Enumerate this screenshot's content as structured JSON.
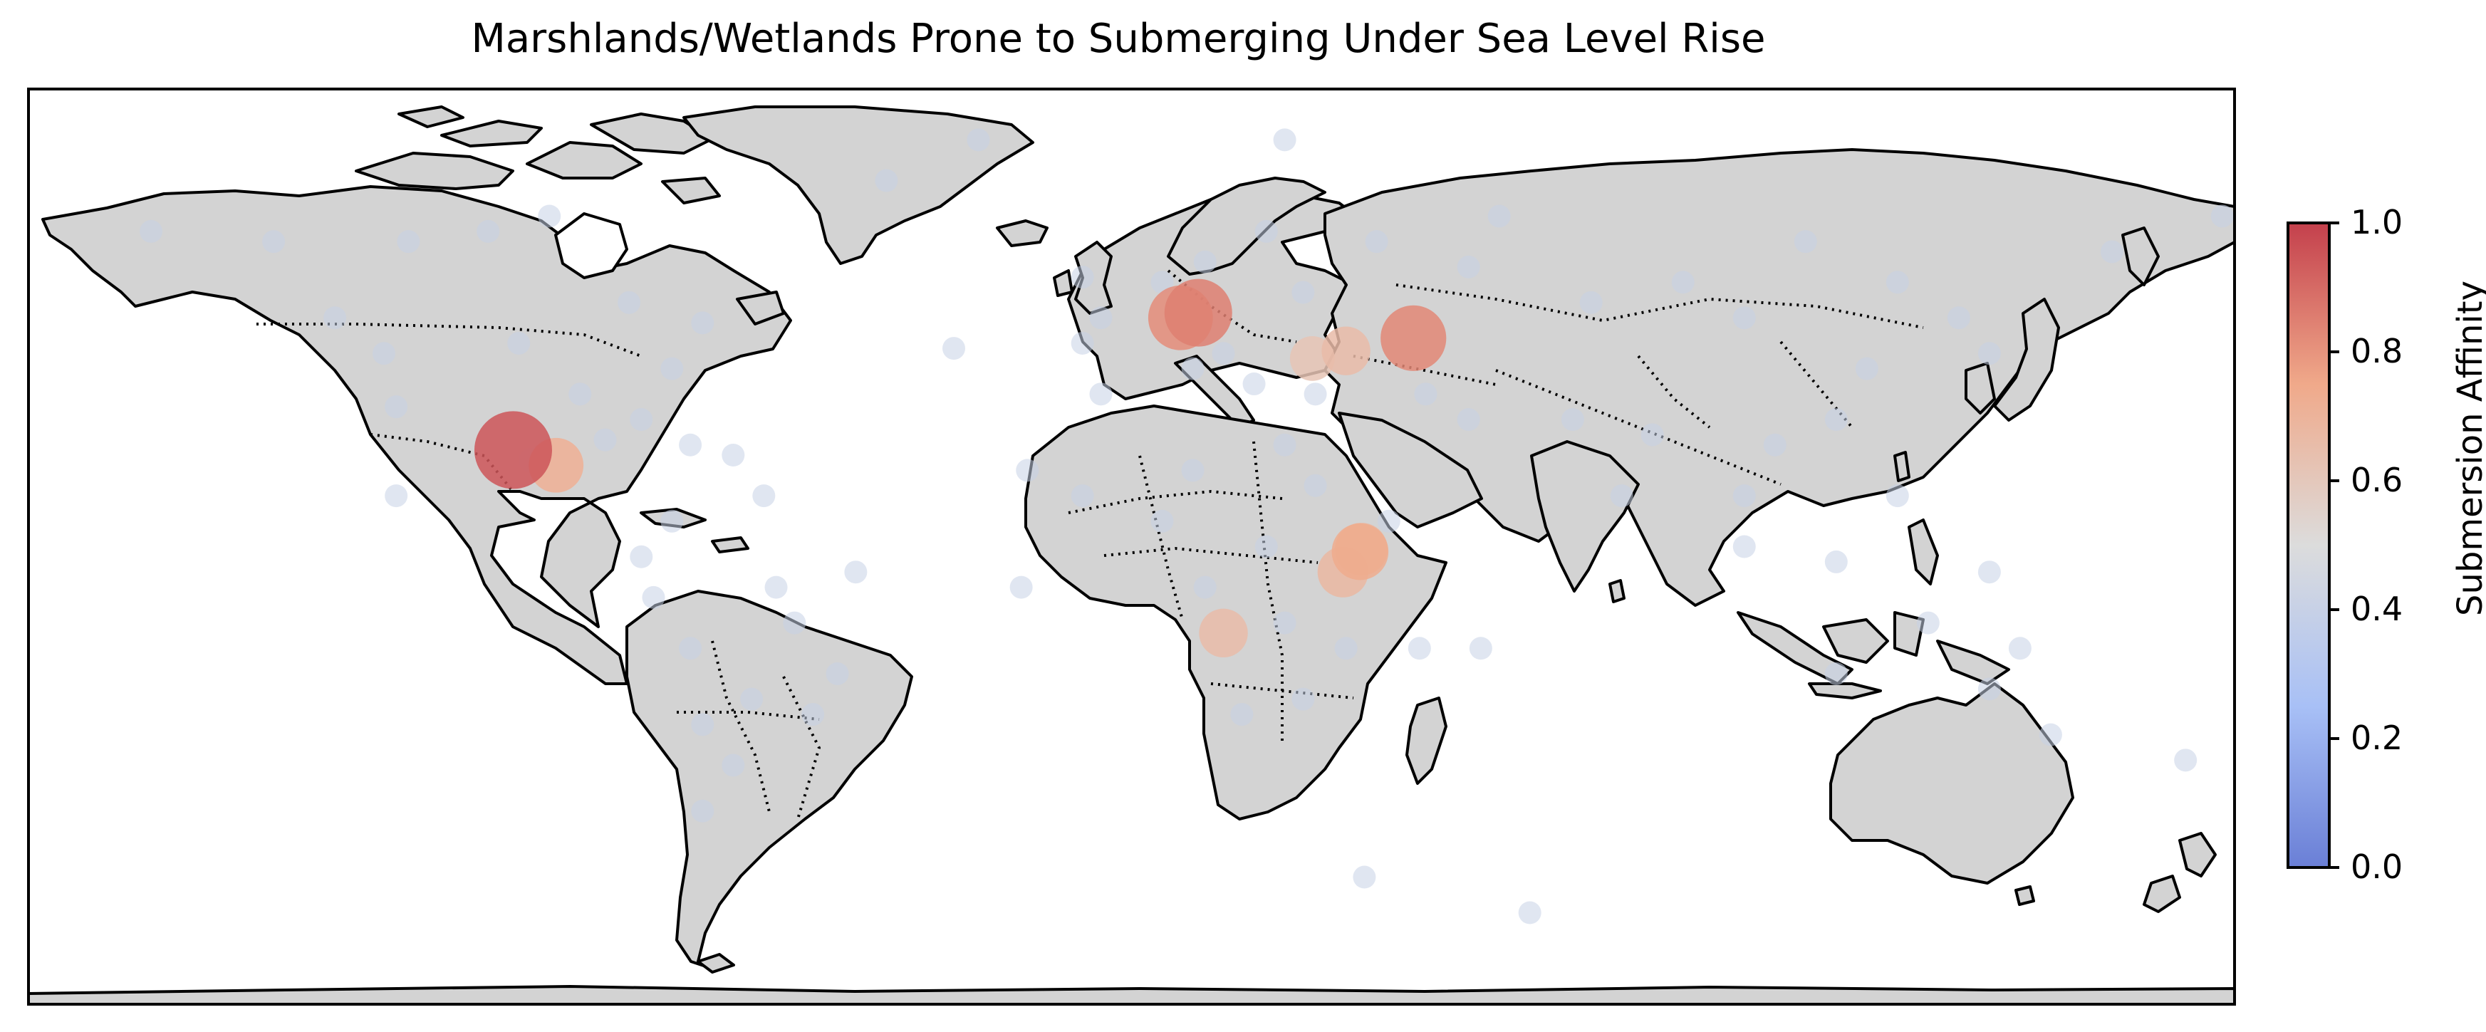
{
  "title": "Marshlands/Wetlands Prone to Submerging Under Sea Level Rise",
  "colorbar": {
    "label": "Submersion Affinity",
    "colormap": "coolwarm",
    "range": [
      0.0,
      1.0
    ],
    "ticks": [
      "0.0",
      "0.2",
      "0.4",
      "0.6",
      "0.8",
      "1.0"
    ],
    "colors": {
      "low": "#7083d8",
      "mid": "#dcdcdc",
      "high": "#c4404c"
    }
  },
  "map": {
    "projection": "PlateCarree",
    "extent_lon": [
      -180,
      180
    ],
    "extent_lat": [
      -90,
      90
    ],
    "land_color": "#d3d3d3",
    "ocean_color": "#ffffff",
    "coastline": "solid",
    "borders": "dotted"
  },
  "chart_data": {
    "type": "scatter",
    "title": "Marshlands/Wetlands Prone to Submerging Under Sea Level Rise",
    "xlabel": "",
    "ylabel": "",
    "xlim": [
      -180,
      180
    ],
    "ylim": [
      -90,
      90
    ],
    "colorbar_label": "Submersion Affinity",
    "points": [
      {
        "lon": -100.9,
        "lat": 19.0,
        "affinity": 0.95
      },
      {
        "lon": -93.9,
        "lat": 16.0,
        "affinity": 0.72
      },
      {
        "lon": 10.9,
        "lat": 46.0,
        "affinity": 0.85
      },
      {
        "lon": 8.0,
        "lat": 45.0,
        "affinity": 0.82
      },
      {
        "lon": 46.0,
        "lat": 41.0,
        "affinity": 0.83
      },
      {
        "lon": 35.0,
        "lat": 38.5,
        "affinity": 0.66
      },
      {
        "lon": 29.5,
        "lat": 37.0,
        "affinity": 0.62
      },
      {
        "lon": 37.3,
        "lat": -1.0,
        "affinity": 0.74
      },
      {
        "lon": 37.5,
        "lat": -0.5,
        "affinity": 0.7
      },
      {
        "lon": 34.5,
        "lat": -5.0,
        "affinity": 0.68
      },
      {
        "lon": 15.0,
        "lat": -17.0,
        "affinity": 0.66
      },
      {
        "lon": -98.0,
        "lat": 17.0,
        "affinity": 0.42
      },
      {
        "lon": -85.9,
        "lat": 21.0,
        "affinity": 0.4
      },
      {
        "lon": -80.0,
        "lat": 25.0,
        "affinity": 0.4
      },
      {
        "lon": -120.0,
        "lat": 27.5,
        "affinity": 0.4
      },
      {
        "lon": -122.0,
        "lat": 38.0,
        "affinity": 0.4
      },
      {
        "lon": -118.0,
        "lat": 60.0,
        "affinity": 0.4
      },
      {
        "lon": -105.0,
        "lat": 62.0,
        "affinity": 0.4
      },
      {
        "lon": -95.0,
        "lat": 65.0,
        "affinity": 0.4
      },
      {
        "lon": -82.0,
        "lat": 48.0,
        "affinity": 0.4
      },
      {
        "lon": -70.0,
        "lat": 44.0,
        "affinity": 0.4
      },
      {
        "lon": -75.0,
        "lat": 35.0,
        "affinity": 0.4
      },
      {
        "lon": -90.0,
        "lat": 30.0,
        "affinity": 0.4
      },
      {
        "lon": -120.0,
        "lat": 10.0,
        "affinity": 0.4
      },
      {
        "lon": -130.0,
        "lat": 45.0,
        "affinity": 0.4
      },
      {
        "lon": -140.0,
        "lat": 60.0,
        "affinity": 0.4
      },
      {
        "lon": -160.0,
        "lat": 62.0,
        "affinity": 0.4
      },
      {
        "lon": -100.0,
        "lat": 40.0,
        "affinity": 0.4
      },
      {
        "lon": -72.0,
        "lat": 20.0,
        "affinity": 0.4
      },
      {
        "lon": -65.0,
        "lat": 18.0,
        "affinity": 0.4
      },
      {
        "lon": -60.0,
        "lat": 10.0,
        "affinity": 0.4
      },
      {
        "lon": -75.0,
        "lat": 5.0,
        "affinity": 0.4
      },
      {
        "lon": -80.0,
        "lat": -2.0,
        "affinity": 0.4
      },
      {
        "lon": -78.0,
        "lat": -10.0,
        "affinity": 0.4
      },
      {
        "lon": -72.0,
        "lat": -20.0,
        "affinity": 0.4
      },
      {
        "lon": -58.0,
        "lat": -8.0,
        "affinity": 0.4
      },
      {
        "lon": -45.0,
        "lat": -5.0,
        "affinity": 0.4
      },
      {
        "lon": -55.0,
        "lat": -15.0,
        "affinity": 0.4
      },
      {
        "lon": -48.0,
        "lat": -25.0,
        "affinity": 0.4
      },
      {
        "lon": -62.0,
        "lat": -30.0,
        "affinity": 0.4
      },
      {
        "lon": -70.0,
        "lat": -35.0,
        "affinity": 0.4
      },
      {
        "lon": -65.0,
        "lat": -43.0,
        "affinity": 0.4
      },
      {
        "lon": -70.0,
        "lat": -52.0,
        "affinity": 0.4
      },
      {
        "lon": -52.0,
        "lat": -33.0,
        "affinity": 0.4
      },
      {
        "lon": -40.0,
        "lat": 72.0,
        "affinity": 0.4
      },
      {
        "lon": -25.0,
        "lat": 80.0,
        "affinity": 0.4
      },
      {
        "lon": 25.0,
        "lat": 80.0,
        "affinity": 0.4
      },
      {
        "lon": -8.0,
        "lat": 53.0,
        "affinity": 0.4
      },
      {
        "lon": -5.0,
        "lat": 45.0,
        "affinity": 0.4
      },
      {
        "lon": -8.0,
        "lat": 40.0,
        "affinity": 0.4
      },
      {
        "lon": 5.0,
        "lat": 52.0,
        "affinity": 0.4
      },
      {
        "lon": 12.0,
        "lat": 56.0,
        "affinity": 0.4
      },
      {
        "lon": 22.0,
        "lat": 62.0,
        "affinity": 0.4
      },
      {
        "lon": 28.0,
        "lat": 50.0,
        "affinity": 0.4
      },
      {
        "lon": 15.0,
        "lat": 38.0,
        "affinity": 0.4
      },
      {
        "lon": 20.0,
        "lat": 32.0,
        "affinity": 0.4
      },
      {
        "lon": 40.0,
        "lat": 60.0,
        "affinity": 0.4
      },
      {
        "lon": 55.0,
        "lat": 55.0,
        "affinity": 0.4
      },
      {
        "lon": 60.0,
        "lat": 65.0,
        "affinity": 0.4
      },
      {
        "lon": 75.0,
        "lat": 48.0,
        "affinity": 0.4
      },
      {
        "lon": 90.0,
        "lat": 52.0,
        "affinity": 0.4
      },
      {
        "lon": 100.0,
        "lat": 45.0,
        "affinity": 0.4
      },
      {
        "lon": 110.0,
        "lat": 60.0,
        "affinity": 0.4
      },
      {
        "lon": 125.0,
        "lat": 52.0,
        "affinity": 0.4
      },
      {
        "lon": 135.0,
        "lat": 45.0,
        "affinity": 0.4
      },
      {
        "lon": 140.0,
        "lat": 38.0,
        "affinity": 0.4
      },
      {
        "lon": 120.0,
        "lat": 35.0,
        "affinity": 0.4
      },
      {
        "lon": 115.0,
        "lat": 25.0,
        "affinity": 0.4
      },
      {
        "lon": 105.0,
        "lat": 20.0,
        "affinity": 0.4
      },
      {
        "lon": 100.0,
        "lat": 10.0,
        "affinity": 0.4
      },
      {
        "lon": 80.0,
        "lat": 10.0,
        "affinity": 0.4
      },
      {
        "lon": 85.0,
        "lat": 22.0,
        "affinity": 0.4
      },
      {
        "lon": 72.0,
        "lat": 25.0,
        "affinity": 0.4
      },
      {
        "lon": 55.0,
        "lat": 25.0,
        "affinity": 0.4
      },
      {
        "lon": 48.0,
        "lat": 30.0,
        "affinity": 0.4
      },
      {
        "lon": 30.0,
        "lat": 30.0,
        "affinity": 0.4
      },
      {
        "lon": 10.0,
        "lat": 35.0,
        "affinity": 0.4
      },
      {
        "lon": -5.0,
        "lat": 30.0,
        "affinity": 0.4
      },
      {
        "lon": -17.0,
        "lat": 15.0,
        "affinity": 0.4
      },
      {
        "lon": -8.0,
        "lat": 10.0,
        "affinity": 0.4
      },
      {
        "lon": 5.0,
        "lat": 5.0,
        "affinity": 0.4
      },
      {
        "lon": 10.0,
        "lat": 15.0,
        "affinity": 0.4
      },
      {
        "lon": 25.0,
        "lat": 20.0,
        "affinity": 0.4
      },
      {
        "lon": 30.0,
        "lat": 12.0,
        "affinity": 0.4
      },
      {
        "lon": 42.0,
        "lat": 5.0,
        "affinity": 0.4
      },
      {
        "lon": 22.0,
        "lat": 0.0,
        "affinity": 0.4
      },
      {
        "lon": 12.0,
        "lat": -8.0,
        "affinity": 0.4
      },
      {
        "lon": 25.0,
        "lat": -15.0,
        "affinity": 0.4
      },
      {
        "lon": 35.0,
        "lat": -20.0,
        "affinity": 0.4
      },
      {
        "lon": 28.0,
        "lat": -30.0,
        "affinity": 0.4
      },
      {
        "lon": 18.0,
        "lat": -33.0,
        "affinity": 0.4
      },
      {
        "lon": 47.0,
        "lat": -20.0,
        "affinity": 0.4
      },
      {
        "lon": 57.0,
        "lat": -20.0,
        "affinity": 0.4
      },
      {
        "lon": -29.0,
        "lat": 39.0,
        "affinity": 0.4
      },
      {
        "lon": -18.0,
        "lat": -8.0,
        "affinity": 0.4
      },
      {
        "lon": 100.0,
        "lat": 0.0,
        "affinity": 0.4
      },
      {
        "lon": 115.0,
        "lat": -3.0,
        "affinity": 0.4
      },
      {
        "lon": 125.0,
        "lat": 10.0,
        "affinity": 0.4
      },
      {
        "lon": 140.0,
        "lat": -5.0,
        "affinity": 0.4
      },
      {
        "lon": 115.0,
        "lat": -25.0,
        "affinity": 0.4
      },
      {
        "lon": 130.0,
        "lat": -15.0,
        "affinity": 0.4
      },
      {
        "lon": 140.0,
        "lat": -28.0,
        "affinity": 0.4
      },
      {
        "lon": 150.0,
        "lat": -37.0,
        "affinity": 0.4
      },
      {
        "lon": 145.0,
        "lat": -20.0,
        "affinity": 0.4
      },
      {
        "lon": 172.0,
        "lat": -42.0,
        "affinity": 0.4
      },
      {
        "lon": 38.0,
        "lat": -65.0,
        "affinity": 0.4
      },
      {
        "lon": 65.0,
        "lat": -72.0,
        "affinity": 0.4
      },
      {
        "lon": 160.0,
        "lat": 58.0,
        "affinity": 0.4
      },
      {
        "lon": 178.0,
        "lat": 65.0,
        "affinity": 0.4
      }
    ]
  }
}
